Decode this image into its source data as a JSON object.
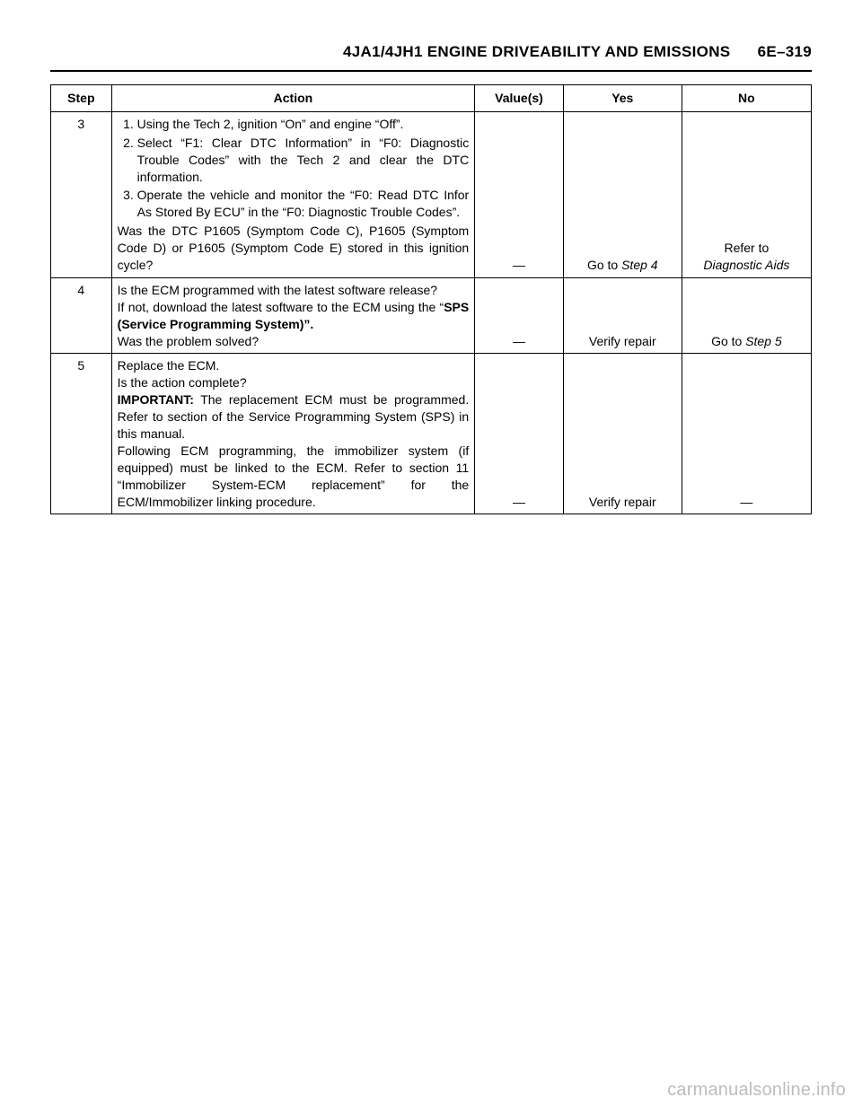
{
  "header": {
    "title": "4JA1/4JH1 ENGINE DRIVEABILITY AND EMISSIONS",
    "page": "6E–319"
  },
  "table": {
    "columns": {
      "step": "Step",
      "action": "Action",
      "value": "Value(s)",
      "yes": "Yes",
      "no": "No"
    },
    "rows": [
      {
        "step": "3",
        "action_item1": "Using the Tech 2, ignition “On” and engine “Off”.",
        "action_item2": "Select “F1: Clear DTC Information” in “F0: Diagnostic Trouble Codes” with the Tech 2 and clear the DTC information.",
        "action_item3": "Operate the vehicle and monitor the “F0: Read DTC Infor As Stored By ECU” in the “F0: Diagnostic Trouble Codes”.",
        "action_tail": "Was the DTC P1605 (Symptom Code C), P1605 (Symptom Code D) or P1605 (Symptom Code E) stored in this ignition cycle?",
        "value": "—",
        "yes_prefix": "Go to ",
        "yes_italic": "Step 4",
        "no_prefix": "Refer to ",
        "no_italic": "Diagnostic Aids"
      },
      {
        "step": "4",
        "action_p1": "Is the ECM programmed with the latest software release?",
        "action_p2a": "If not, download the latest software to the ECM using the “",
        "action_p2b_bold": "SPS (Service Programming System)”.",
        "action_p3": "Was the problem solved?",
        "value": "—",
        "yes": "Verify repair",
        "no_prefix": "Go to ",
        "no_italic": "Step 5"
      },
      {
        "step": "5",
        "action_p1": "Replace the ECM.",
        "action_p2": "Is the action complete?",
        "action_p3a_bold": "IMPORTANT:",
        "action_p3b": " The replacement ECM must be programmed. Refer to section of the Service Programming System (SPS) in this manual.",
        "action_p4": "Following ECM programming, the immobilizer system (if equipped) must be linked to the ECM. Refer to section 11 “Immobilizer System-ECM replacement” for the ECM/Immobilizer linking procedure.",
        "value": "—",
        "yes": "Verify repair",
        "no": "—"
      }
    ]
  },
  "watermark": "carmanualsonline.info"
}
